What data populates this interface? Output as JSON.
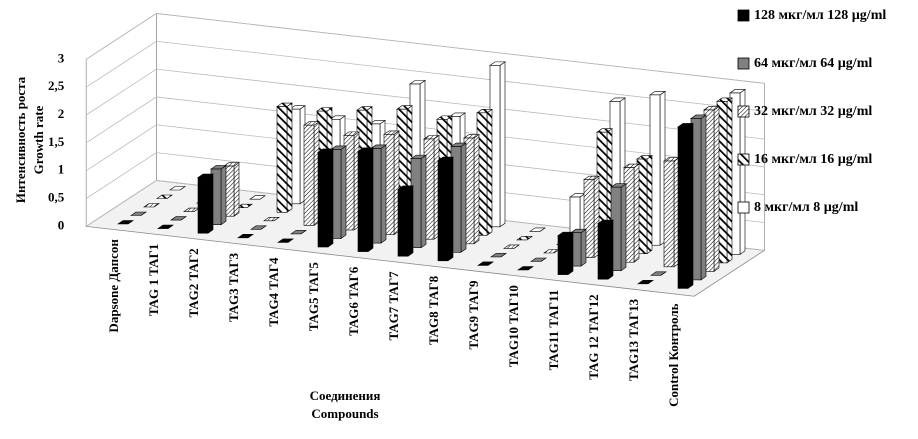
{
  "chart_data": {
    "type": "bar3d",
    "y_label": [
      "Интенсивность  роста",
      "Growth rate"
    ],
    "x_label": [
      "Соединения",
      "Compounds"
    ],
    "categories": [
      "Dapsone Дапсон",
      "TAG 1 ТАГ1",
      "TAG2 ТАГ2",
      "TAG3 ТАГ3",
      "TAG4 ТАГ4",
      "TAG5 ТАГ5",
      "TAG6 ТАГ6",
      "TAG7 ТАГ7",
      "TAG8 ТАГ8",
      "TAG9 ТАГ9",
      "TAG10 ТАГ10",
      "TAG11 ТАГ11",
      "TAG 12 ТАГ12",
      "TAG13 ТАГ13",
      "Control Контроль"
    ],
    "series": [
      {
        "name": "128 мкг/мл 128 µg/ml",
        "color": "#000000",
        "values": [
          0,
          0,
          1.0,
          0,
          0,
          1.7,
          1.8,
          1.2,
          1.8,
          0,
          0,
          0.7,
          1.0,
          0,
          2.9
        ]
      },
      {
        "name": "64 мкг/мл 64 µg/ml",
        "color": "#808080",
        "values": [
          0,
          0,
          1.0,
          0,
          0,
          1.6,
          1.7,
          1.6,
          1.9,
          0,
          0,
          0.6,
          1.5,
          0,
          2.9
        ]
      },
      {
        "name": "32 мкг/мл 32 µg/ml",
        "color": "#000000",
        "pattern": "fine-hatch",
        "values": [
          0,
          0,
          0.9,
          0,
          1.8,
          1.7,
          1.8,
          1.8,
          1.9,
          0,
          0,
          1.4,
          1.7,
          1.9,
          2.9
        ]
      },
      {
        "name": "16 мкг/мл 16 µg/ml",
        "color": "#000000",
        "pattern": "bold-hatch",
        "values": [
          0,
          0,
          0,
          1.9,
          1.9,
          2.0,
          2.1,
          2.0,
          2.2,
          0,
          0,
          2.1,
          1.7,
          1.8,
          2.9
        ]
      },
      {
        "name": "8 мкг/мл 8 µg/ml",
        "color": "#ffffff",
        "values": [
          0,
          0,
          0,
          1.7,
          1.6,
          1.6,
          2.4,
          1.9,
          2.9,
          0,
          0.7,
          2.5,
          2.7,
          1.7,
          2.9
        ]
      }
    ],
    "ylim": [
      0,
      3
    ],
    "yticks": [
      0,
      {
        "value": 0.5,
        "label": "0,5"
      },
      1,
      {
        "value": 1.5,
        "label": "1,5"
      },
      2,
      {
        "value": 2.5,
        "label": "2,5"
      },
      3
    ],
    "grid": true,
    "legend": "right"
  }
}
